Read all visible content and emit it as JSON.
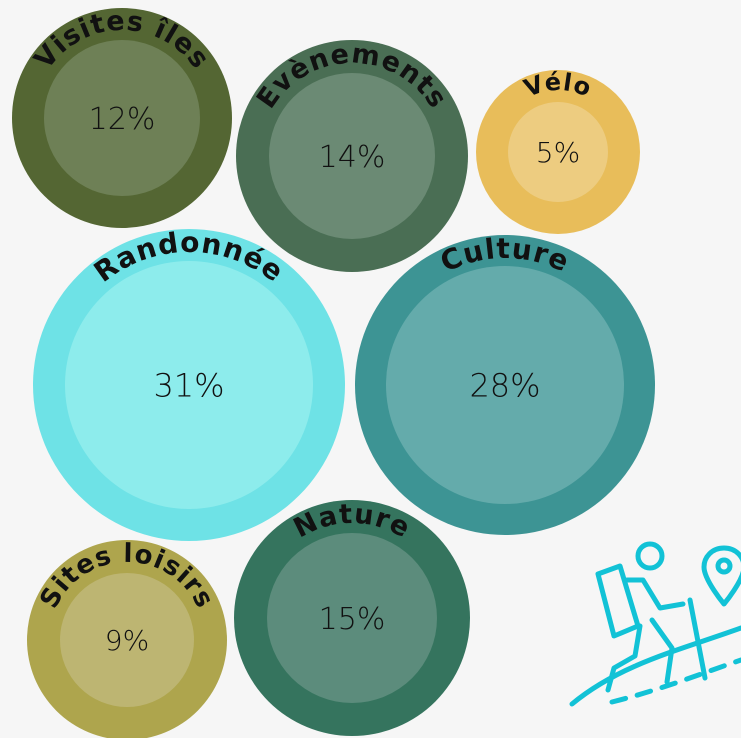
{
  "chart_data": {
    "type": "bubble",
    "series": [
      {
        "label": "Visites îles",
        "value": 12,
        "percent_label": "12%",
        "color": "#546633",
        "inner_color": "#6e8056"
      },
      {
        "label": "Evènements",
        "value": 14,
        "percent_label": "14%",
        "color": "#4a6e54",
        "inner_color": "#6b8a74"
      },
      {
        "label": "Vélo",
        "value": 5,
        "percent_label": "5%",
        "color": "#e8bd5a",
        "inner_color": "#edcc80"
      },
      {
        "label": "Randonnée",
        "value": 31,
        "percent_label": "31%",
        "color": "#6ee2e6",
        "inner_color": "#8decec"
      },
      {
        "label": "Culture",
        "value": 28,
        "percent_label": "28%",
        "color": "#3d9494",
        "inner_color": "#64abab"
      },
      {
        "label": "Sites loisirs",
        "value": 9,
        "percent_label": "9%",
        "color": "#aea54d",
        "inner_color": "#bdb572"
      },
      {
        "label": "Nature",
        "value": 15,
        "percent_label": "15%",
        "color": "#35745e",
        "inner_color": "#5c8c7c"
      }
    ]
  },
  "decoration": {
    "icon": "hiker-icon",
    "color": "#12c2d6"
  }
}
